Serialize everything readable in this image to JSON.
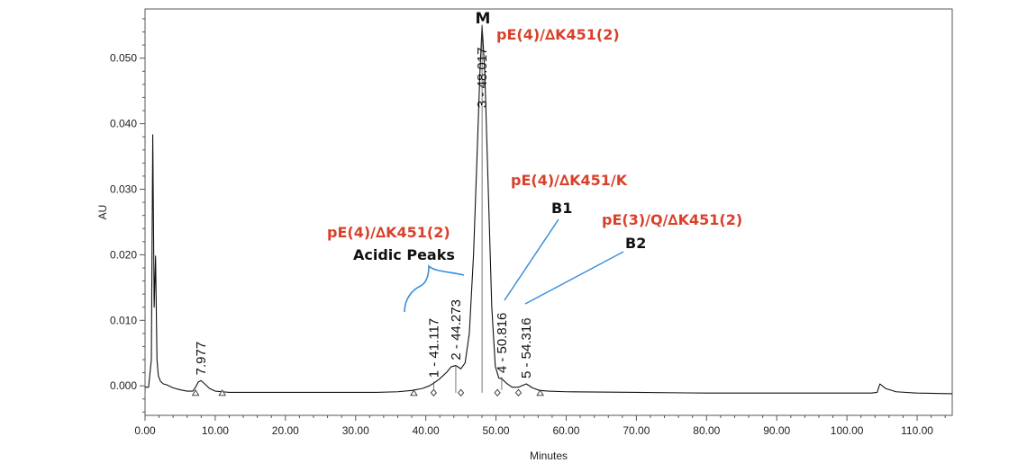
{
  "chart_data": {
    "type": "line",
    "title": "",
    "xlabel": "Minutes",
    "ylabel": "AU",
    "xlim": [
      0,
      115
    ],
    "ylim": [
      -0.0045,
      0.0575
    ],
    "x_ticks": [
      0,
      10,
      20,
      30,
      40,
      50,
      60,
      70,
      80,
      90,
      100,
      110
    ],
    "x_tick_labels": [
      "0.00",
      "10.00",
      "20.00",
      "30.00",
      "40.00",
      "50.00",
      "60.00",
      "70.00",
      "80.00",
      "90.00",
      "100.00",
      "110.00"
    ],
    "y_ticks": [
      0,
      0.01,
      0.02,
      0.03,
      0.04,
      0.05
    ],
    "y_tick_labels": [
      "0.000",
      "0.010",
      "0.020",
      "0.030",
      "0.040",
      "0.050"
    ],
    "series": [
      {
        "x": [
          0,
          0.5,
          0.9,
          1.1,
          1.3,
          1.5,
          1.7,
          1.9,
          2.2,
          2.6,
          3.0,
          4.0,
          5.0,
          6.0,
          6.8,
          7.2,
          7.6,
          7.977,
          8.5,
          9.2,
          10.0,
          11.0,
          12.0,
          15.0,
          20.0,
          25.0,
          30.0,
          33.0,
          36.0,
          38.0,
          39.5,
          40.5,
          41.117,
          42.0,
          43.0,
          43.6,
          44.273,
          45.0,
          45.6,
          46.2,
          46.8,
          47.3,
          47.7,
          48.017,
          48.4,
          48.9,
          49.4,
          49.9,
          50.4,
          50.816,
          51.5,
          52.3,
          53.2,
          54.316,
          55.2,
          56.2,
          57.5,
          60.0,
          70.0,
          80.0,
          90.0,
          100.0,
          103.5,
          104.3,
          104.7,
          105.5,
          107.0,
          110.0,
          115.0
        ],
        "values": [
          -0.0002,
          -0.0002,
          0.004,
          0.0383,
          0.012,
          0.0198,
          0.004,
          0.0015,
          0.0007,
          0.0003,
          0.0002,
          -0.0003,
          -0.0006,
          -0.0008,
          -0.0008,
          -0.0002,
          0.0006,
          0.0008,
          0.0003,
          -0.0004,
          -0.0008,
          -0.0009,
          -0.001,
          -0.001,
          -0.001,
          -0.001,
          -0.001,
          -0.001,
          -0.0009,
          -0.0007,
          -0.0004,
          0.0,
          0.0004,
          0.0011,
          0.0021,
          0.0029,
          0.0031,
          0.0026,
          0.0035,
          0.008,
          0.02,
          0.035,
          0.0475,
          0.055,
          0.048,
          0.03,
          0.012,
          0.003,
          0.0012,
          0.0011,
          0.0004,
          -0.0002,
          -0.0002,
          0.0003,
          -0.0003,
          -0.0007,
          -0.0008,
          -0.0009,
          -0.001,
          -0.0011,
          -0.0011,
          -0.0011,
          -0.0011,
          -0.001,
          0.0003,
          -0.0004,
          -0.0009,
          -0.0011,
          -0.0012
        ]
      }
    ],
    "peak_labels": [
      {
        "rt": 7.977,
        "text": "7.977"
      },
      {
        "rt": 41.117,
        "text": "1 - 41.117"
      },
      {
        "rt": 44.273,
        "text": "2 - 44.273"
      },
      {
        "rt": 48.017,
        "text": "3 - 48.017"
      },
      {
        "rt": 50.816,
        "text": "4 - 50.816"
      },
      {
        "rt": 54.316,
        "text": "5 - 54.316"
      }
    ],
    "annotations": {
      "m": "M",
      "main": "pE(4)/∆K451(2)",
      "acidic_species": "pE(4)/∆K451(2)",
      "acidic_label": "Acidic Peaks",
      "b1_species": "pE(4)/∆K451/K",
      "b1_label": "B1",
      "b2_species": "pE(3)/Q/∆K451(2)",
      "b2_label": "B2"
    },
    "colors": {
      "trace": "#111111",
      "annotation_red": "#d9402b",
      "callout_line": "#3b8fd9"
    },
    "grid": false
  }
}
